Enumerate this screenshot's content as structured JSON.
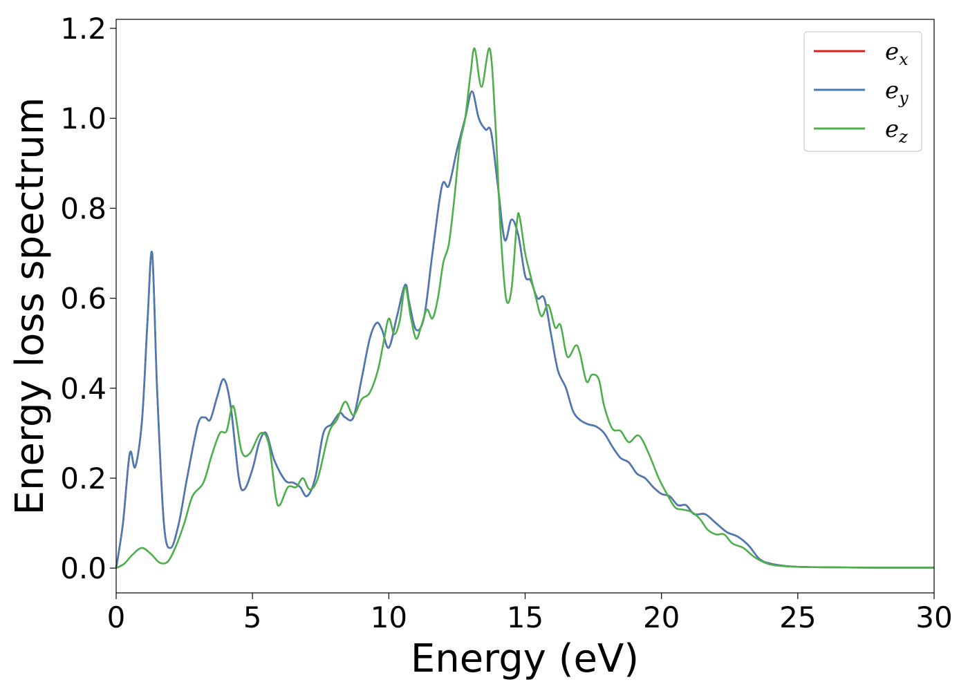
{
  "chart_data": {
    "type": "line",
    "title": "",
    "xlabel": "Energy (eV)",
    "ylabel": "Energy loss spectrum",
    "xlim": [
      0,
      30
    ],
    "ylim": [
      -0.055,
      1.22
    ],
    "xticks": [
      "0",
      "5",
      "10",
      "15",
      "20",
      "25",
      "30"
    ],
    "yticks": [
      "0.0",
      "0.2",
      "0.4",
      "0.6",
      "0.8",
      "1.0",
      "1.2"
    ],
    "grid": false,
    "legend_position": "top-right",
    "series": [
      {
        "name": "e_x",
        "legend_base": "e",
        "legend_sub": "x",
        "color": "#e41a1c",
        "x": [
          0,
          0.25,
          0.5,
          0.7,
          0.95,
          1.15,
          1.32,
          1.5,
          1.75,
          2.0,
          2.3,
          2.6,
          3.0,
          3.25,
          3.45,
          3.7,
          3.95,
          4.2,
          4.5,
          4.7,
          5.0,
          5.25,
          5.5,
          5.8,
          6.2,
          6.5,
          6.75,
          7.0,
          7.3,
          7.6,
          7.9,
          8.2,
          8.4,
          8.7,
          9.0,
          9.3,
          9.55,
          9.75,
          10.0,
          10.3,
          10.6,
          10.75,
          11.0,
          11.3,
          11.6,
          11.95,
          12.2,
          12.5,
          12.8,
          13.05,
          13.3,
          13.55,
          13.75,
          14.0,
          14.25,
          14.5,
          14.75,
          15.0,
          15.2,
          15.45,
          15.7,
          15.95,
          16.2,
          16.5,
          16.75,
          17.0,
          17.3,
          17.6,
          17.9,
          18.2,
          18.5,
          18.8,
          19.1,
          19.4,
          19.7,
          20.0,
          20.3,
          20.6,
          20.9,
          21.2,
          21.6,
          22.0,
          22.4,
          22.8,
          23.2,
          23.6,
          24.0,
          24.5,
          25.0,
          26.0,
          28.0,
          30.0
        ],
        "y": [
          0.0,
          0.1,
          0.255,
          0.225,
          0.33,
          0.55,
          0.7,
          0.4,
          0.1,
          0.045,
          0.1,
          0.2,
          0.32,
          0.335,
          0.33,
          0.38,
          0.42,
          0.36,
          0.2,
          0.175,
          0.22,
          0.28,
          0.3,
          0.24,
          0.195,
          0.19,
          0.18,
          0.16,
          0.2,
          0.3,
          0.32,
          0.345,
          0.335,
          0.335,
          0.42,
          0.51,
          0.545,
          0.53,
          0.49,
          0.56,
          0.63,
          0.59,
          0.53,
          0.56,
          0.7,
          0.85,
          0.85,
          0.93,
          1.0,
          1.06,
          1.0,
          0.975,
          0.97,
          0.85,
          0.73,
          0.775,
          0.74,
          0.65,
          0.64,
          0.6,
          0.6,
          0.52,
          0.44,
          0.4,
          0.35,
          0.33,
          0.32,
          0.315,
          0.3,
          0.27,
          0.245,
          0.235,
          0.21,
          0.2,
          0.18,
          0.165,
          0.16,
          0.14,
          0.14,
          0.12,
          0.12,
          0.1,
          0.08,
          0.07,
          0.05,
          0.02,
          0.01,
          0.005,
          0.003,
          0.002,
          0.001,
          0.001
        ]
      },
      {
        "name": "e_y",
        "legend_base": "e",
        "legend_sub": "y",
        "color": "#4a7ab5",
        "x": [
          0,
          0.25,
          0.5,
          0.7,
          0.95,
          1.15,
          1.32,
          1.5,
          1.75,
          2.0,
          2.3,
          2.6,
          3.0,
          3.25,
          3.45,
          3.7,
          3.95,
          4.2,
          4.5,
          4.7,
          5.0,
          5.25,
          5.5,
          5.8,
          6.2,
          6.5,
          6.75,
          7.0,
          7.3,
          7.6,
          7.9,
          8.2,
          8.4,
          8.7,
          9.0,
          9.3,
          9.55,
          9.75,
          10.0,
          10.3,
          10.6,
          10.75,
          11.0,
          11.3,
          11.6,
          11.95,
          12.2,
          12.5,
          12.8,
          13.05,
          13.3,
          13.55,
          13.75,
          14.0,
          14.25,
          14.5,
          14.75,
          15.0,
          15.2,
          15.45,
          15.7,
          15.95,
          16.2,
          16.5,
          16.75,
          17.0,
          17.3,
          17.6,
          17.9,
          18.2,
          18.5,
          18.8,
          19.1,
          19.4,
          19.7,
          20.0,
          20.3,
          20.6,
          20.9,
          21.2,
          21.6,
          22.0,
          22.4,
          22.8,
          23.2,
          23.6,
          24.0,
          24.5,
          25.0,
          26.0,
          28.0,
          30.0
        ],
        "y": [
          0.0,
          0.1,
          0.255,
          0.225,
          0.33,
          0.55,
          0.7,
          0.4,
          0.1,
          0.045,
          0.1,
          0.2,
          0.32,
          0.335,
          0.33,
          0.38,
          0.42,
          0.36,
          0.2,
          0.175,
          0.22,
          0.28,
          0.3,
          0.24,
          0.195,
          0.19,
          0.18,
          0.16,
          0.2,
          0.3,
          0.32,
          0.345,
          0.335,
          0.335,
          0.42,
          0.51,
          0.545,
          0.53,
          0.49,
          0.56,
          0.63,
          0.59,
          0.53,
          0.56,
          0.7,
          0.85,
          0.85,
          0.93,
          1.0,
          1.06,
          1.0,
          0.975,
          0.97,
          0.85,
          0.73,
          0.775,
          0.74,
          0.65,
          0.64,
          0.6,
          0.6,
          0.52,
          0.44,
          0.4,
          0.35,
          0.33,
          0.32,
          0.315,
          0.3,
          0.27,
          0.245,
          0.235,
          0.21,
          0.2,
          0.18,
          0.165,
          0.16,
          0.14,
          0.14,
          0.12,
          0.12,
          0.1,
          0.08,
          0.07,
          0.05,
          0.02,
          0.01,
          0.005,
          0.003,
          0.002,
          0.001,
          0.001
        ]
      },
      {
        "name": "e_z",
        "legend_base": "e",
        "legend_sub": "z",
        "color": "#4daf4a",
        "x": [
          0,
          0.3,
          0.6,
          0.95,
          1.3,
          1.6,
          1.9,
          2.2,
          2.5,
          2.8,
          3.2,
          3.5,
          3.8,
          4.05,
          4.3,
          4.6,
          4.9,
          5.3,
          5.6,
          5.85,
          6.0,
          6.3,
          6.6,
          6.85,
          7.1,
          7.4,
          7.8,
          8.1,
          8.4,
          8.7,
          9.0,
          9.3,
          9.6,
          9.8,
          10.0,
          10.2,
          10.4,
          10.6,
          10.8,
          11.0,
          11.2,
          11.4,
          11.6,
          11.8,
          12.0,
          12.2,
          12.4,
          12.6,
          12.8,
          13.0,
          13.15,
          13.4,
          13.7,
          13.9,
          14.1,
          14.3,
          14.5,
          14.7,
          14.8,
          15.0,
          15.2,
          15.4,
          15.6,
          15.85,
          16.1,
          16.3,
          16.55,
          16.85,
          17.0,
          17.25,
          17.45,
          17.7,
          17.9,
          18.2,
          18.5,
          18.8,
          19.1,
          19.3,
          19.6,
          19.9,
          20.2,
          20.5,
          20.8,
          21.1,
          21.4,
          21.7,
          22.0,
          22.3,
          22.6,
          23.0,
          23.4,
          23.8,
          24.2,
          25.0,
          26.0,
          28.0,
          30.0
        ],
        "y": [
          0.0,
          0.01,
          0.03,
          0.045,
          0.03,
          0.012,
          0.015,
          0.05,
          0.1,
          0.16,
          0.19,
          0.25,
          0.3,
          0.305,
          0.36,
          0.26,
          0.255,
          0.3,
          0.275,
          0.16,
          0.14,
          0.18,
          0.18,
          0.2,
          0.175,
          0.2,
          0.3,
          0.33,
          0.37,
          0.34,
          0.375,
          0.39,
          0.44,
          0.5,
          0.555,
          0.52,
          0.55,
          0.625,
          0.56,
          0.51,
          0.54,
          0.575,
          0.555,
          0.6,
          0.68,
          0.72,
          0.82,
          0.94,
          1.0,
          1.1,
          1.155,
          1.07,
          1.155,
          1.0,
          0.75,
          0.6,
          0.62,
          0.77,
          0.78,
          0.7,
          0.65,
          0.6,
          0.56,
          0.585,
          0.535,
          0.54,
          0.47,
          0.495,
          0.48,
          0.415,
          0.43,
          0.42,
          0.36,
          0.31,
          0.305,
          0.28,
          0.295,
          0.285,
          0.245,
          0.2,
          0.165,
          0.135,
          0.13,
          0.125,
          0.11,
          0.085,
          0.075,
          0.075,
          0.055,
          0.045,
          0.025,
          0.012,
          0.006,
          0.003,
          0.002,
          0.001,
          0.001
        ]
      }
    ]
  }
}
